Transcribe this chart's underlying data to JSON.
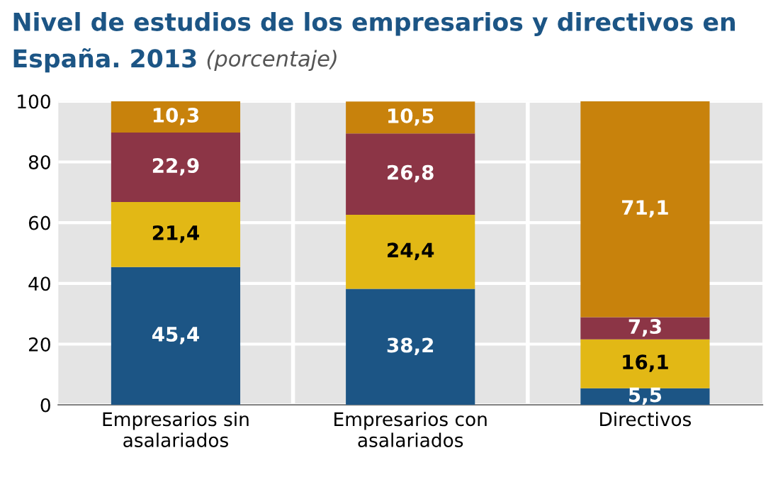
{
  "chart_data": {
    "type": "bar",
    "stacked": true,
    "title": "Nivel de estudios de los empresarios y directivos en España. 2013",
    "subtitle": "(porcentaje)",
    "categories": [
      "Empresarios sin asalariados",
      "Empresarios con asalariados",
      "Directivos"
    ],
    "series": [
      {
        "color": "#1c5585",
        "values": [
          45.4,
          38.2,
          5.5
        ],
        "value_labels": [
          "45,4",
          "38,2",
          "5,5"
        ]
      },
      {
        "color": "#e2b815",
        "values": [
          21.4,
          24.4,
          16.1
        ],
        "value_labels": [
          "21,4",
          "24,4",
          "16,1"
        ]
      },
      {
        "color": "#8c3546",
        "values": [
          22.9,
          26.8,
          7.3
        ],
        "value_labels": [
          "22,9",
          "26,8",
          "7,3"
        ]
      },
      {
        "color": "#c8820c",
        "values": [
          10.3,
          10.5,
          71.1
        ],
        "value_labels": [
          "10,3",
          "10,5",
          "71,1"
        ]
      }
    ],
    "ylim": [
      0,
      100
    ],
    "yticks": [
      0,
      20,
      40,
      60,
      80,
      100
    ],
    "grid": "y"
  }
}
